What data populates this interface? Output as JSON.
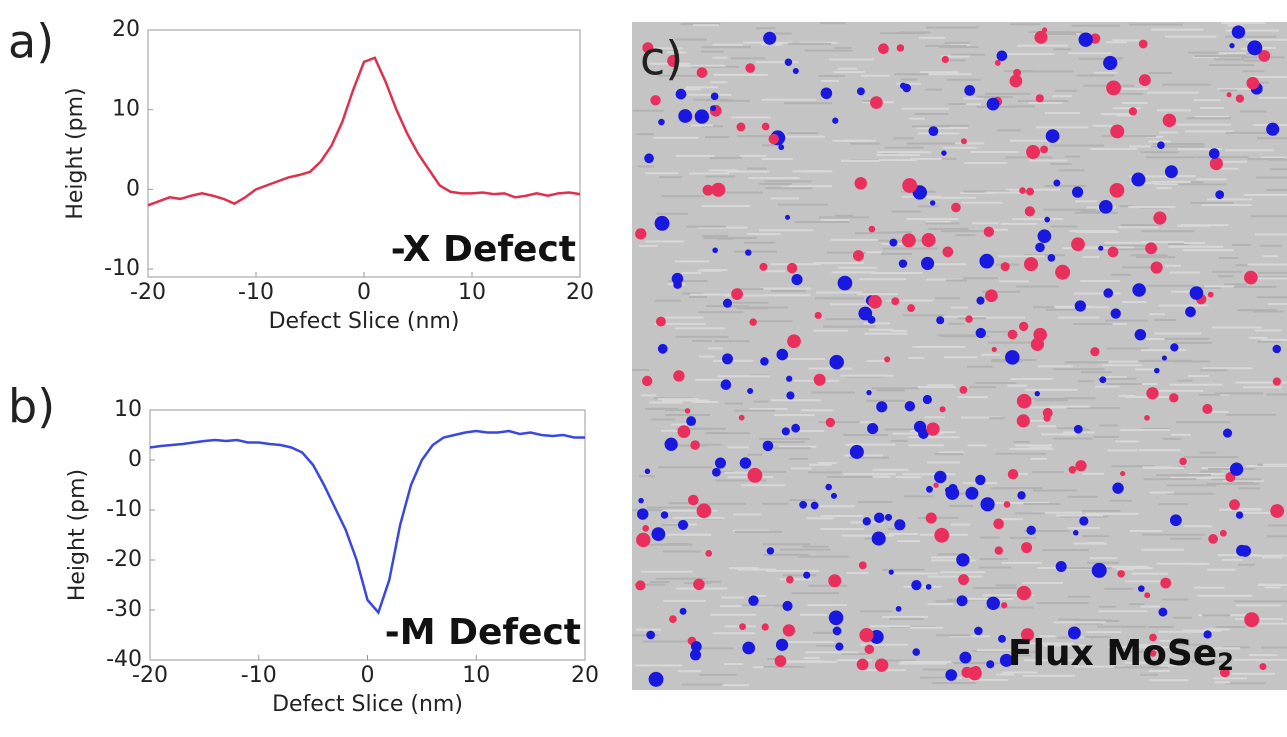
{
  "chart_data": [
    {
      "type": "line",
      "panel_label": "a)",
      "annotation": "-X Defect",
      "xlabel": "Defect Slice (nm)",
      "ylabel": "Height (pm)",
      "color": "#e0304e",
      "x": [
        -20,
        -19,
        -18,
        -17,
        -16,
        -15,
        -14,
        -13,
        -12,
        -11,
        -10,
        -9,
        -8,
        -7,
        -6,
        -5,
        -4,
        -3,
        -2,
        -1,
        0,
        1,
        2,
        3,
        4,
        5,
        6,
        7,
        8,
        9,
        10,
        11,
        12,
        13,
        14,
        15,
        16,
        17,
        18,
        19,
        20
      ],
      "values": [
        -2,
        -1.5,
        -1,
        -1.2,
        -0.8,
        -0.5,
        -0.8,
        -1.2,
        -1.8,
        -1,
        0,
        0.5,
        1,
        1.5,
        1.8,
        2.2,
        3.5,
        5.5,
        8.5,
        12.5,
        16,
        16.5,
        13.5,
        10,
        7,
        4.5,
        2.5,
        0.5,
        -0.3,
        -0.5,
        -0.5,
        -0.4,
        -0.6,
        -0.5,
        -1,
        -0.8,
        -0.5,
        -0.8,
        -0.5,
        -0.4,
        -0.6
      ],
      "xlim": [
        -20,
        20
      ],
      "ylim": [
        -11,
        20
      ],
      "xticks": [
        -20,
        -10,
        0,
        10,
        20
      ],
      "yticks": [
        -10,
        0,
        10,
        20
      ]
    },
    {
      "type": "line",
      "panel_label": "b)",
      "annotation": "-M Defect",
      "xlabel": "Defect Slice (nm)",
      "ylabel": "Height (pm)",
      "color": "#3a47e0",
      "x": [
        -20,
        -19,
        -18,
        -17,
        -16,
        -15,
        -14,
        -13,
        -12,
        -11,
        -10,
        -9,
        -8,
        -7,
        -6,
        -5,
        -4,
        -3,
        -2,
        -1,
        0,
        1,
        2,
        3,
        4,
        5,
        6,
        7,
        8,
        9,
        10,
        11,
        12,
        13,
        14,
        15,
        16,
        17,
        18,
        19,
        20
      ],
      "values": [
        2.5,
        2.8,
        3,
        3.2,
        3.5,
        3.8,
        4,
        3.8,
        4,
        3.5,
        3.5,
        3.2,
        3,
        2.5,
        1.5,
        -1,
        -5,
        -9.5,
        -14,
        -20,
        -28,
        -30.5,
        -24,
        -13,
        -5,
        0,
        3,
        4.5,
        5,
        5.5,
        5.8,
        5.5,
        5.5,
        5.8,
        5.2,
        5.5,
        5,
        4.8,
        5,
        4.5,
        4.5
      ],
      "xlim": [
        -20,
        20
      ],
      "ylim": [
        -40,
        10
      ],
      "xticks": [
        -20,
        -10,
        0,
        10,
        20
      ],
      "yticks": [
        -40,
        -30,
        -20,
        -10,
        0,
        10
      ]
    }
  ],
  "panel_c": {
    "label": "c)",
    "annotation": "Flux MoSe",
    "annotation_subscript": "2"
  }
}
